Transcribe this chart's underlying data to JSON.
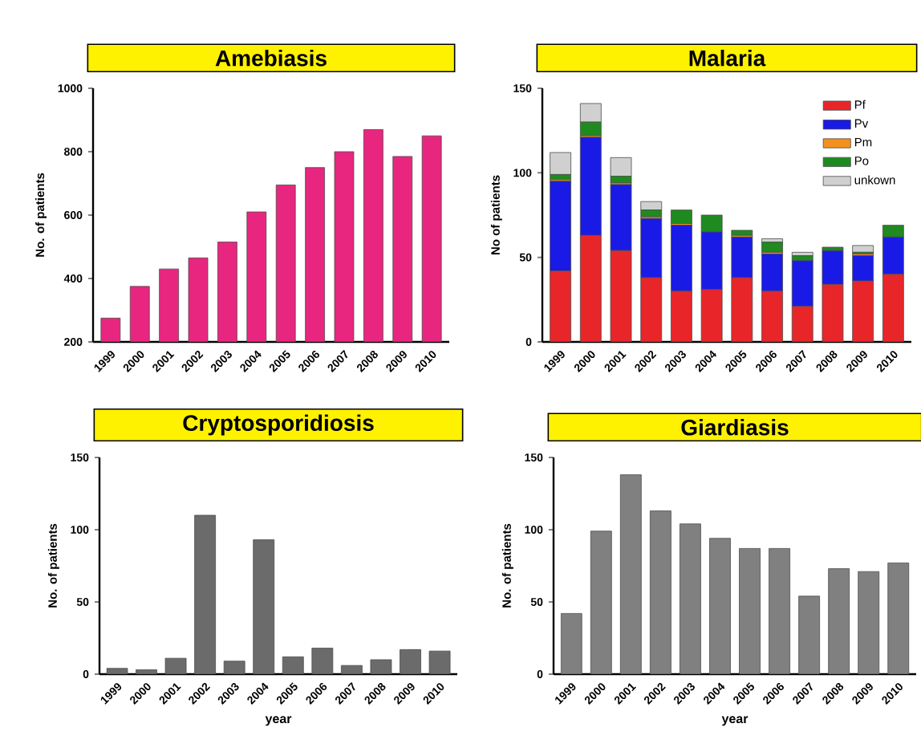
{
  "chart_data": [
    {
      "type": "bar",
      "title": "Amebiasis",
      "ylabel": "No. of patients",
      "categories": [
        "1999",
        "2000",
        "2001",
        "2002",
        "2003",
        "2004",
        "2005",
        "2006",
        "2007",
        "2008",
        "2009",
        "2010"
      ],
      "values": [
        275,
        375,
        430,
        465,
        515,
        610,
        695,
        750,
        800,
        870,
        785,
        850
      ],
      "color": "#e8267f",
      "ylim": [
        200,
        1000
      ],
      "yticks": [
        200,
        400,
        600,
        800,
        1000
      ]
    },
    {
      "type": "bar",
      "title": "Malaria",
      "ylabel": "No of patients",
      "categories": [
        "1999",
        "2000",
        "2001",
        "2002",
        "2003",
        "2004",
        "2005",
        "2006",
        "2007",
        "2008",
        "2009",
        "2010"
      ],
      "stacked": true,
      "legend": "top right",
      "ylim": [
        0,
        150
      ],
      "yticks": [
        0,
        50,
        100,
        150
      ],
      "series": [
        {
          "name": "Pf",
          "color": "#e8262a",
          "values": [
            42,
            63,
            54,
            38,
            30,
            31,
            38,
            30,
            21,
            34,
            36,
            40
          ]
        },
        {
          "name": "Pv",
          "color": "#1a1ae6",
          "values": [
            53,
            58,
            39,
            35,
            39,
            34,
            24,
            22,
            27,
            20,
            15,
            22
          ]
        },
        {
          "name": "Pm",
          "color": "#f39020",
          "values": [
            1,
            1,
            1,
            1,
            1,
            0,
            1,
            1,
            0,
            0,
            1,
            0
          ]
        },
        {
          "name": "Po",
          "color": "#1f8a1f",
          "values": [
            3,
            8,
            4,
            4,
            8,
            10,
            3,
            6,
            3,
            2,
            1,
            7
          ]
        },
        {
          "name": "unkown",
          "color": "#d0d0d0",
          "values": [
            13,
            11,
            11,
            5,
            0,
            0,
            0,
            2,
            2,
            0,
            4,
            0
          ]
        }
      ]
    },
    {
      "type": "bar",
      "title": "Cryptosporidiosis",
      "ylabel": "No. of patients",
      "xlabel": "year",
      "categories": [
        "1999",
        "2000",
        "2001",
        "2002",
        "2003",
        "2004",
        "2005",
        "2006",
        "2007",
        "2008",
        "2009",
        "2010"
      ],
      "values": [
        4,
        3,
        11,
        110,
        9,
        93,
        12,
        18,
        6,
        10,
        17,
        16
      ],
      "color": "#6b6b6b",
      "ylim": [
        0,
        150
      ],
      "yticks": [
        0,
        50,
        100,
        150
      ]
    },
    {
      "type": "bar",
      "title": "Giardiasis",
      "ylabel": "No. of patients",
      "xlabel": "year",
      "categories": [
        "1999",
        "2000",
        "2001",
        "2002",
        "2003",
        "2004",
        "2005",
        "2006",
        "2007",
        "2008",
        "2009",
        "2010"
      ],
      "values": [
        42,
        99,
        138,
        113,
        104,
        94,
        87,
        87,
        54,
        73,
        71,
        77
      ],
      "color": "#808080",
      "ylim": [
        0,
        150
      ],
      "yticks": [
        0,
        50,
        100,
        150
      ]
    }
  ]
}
